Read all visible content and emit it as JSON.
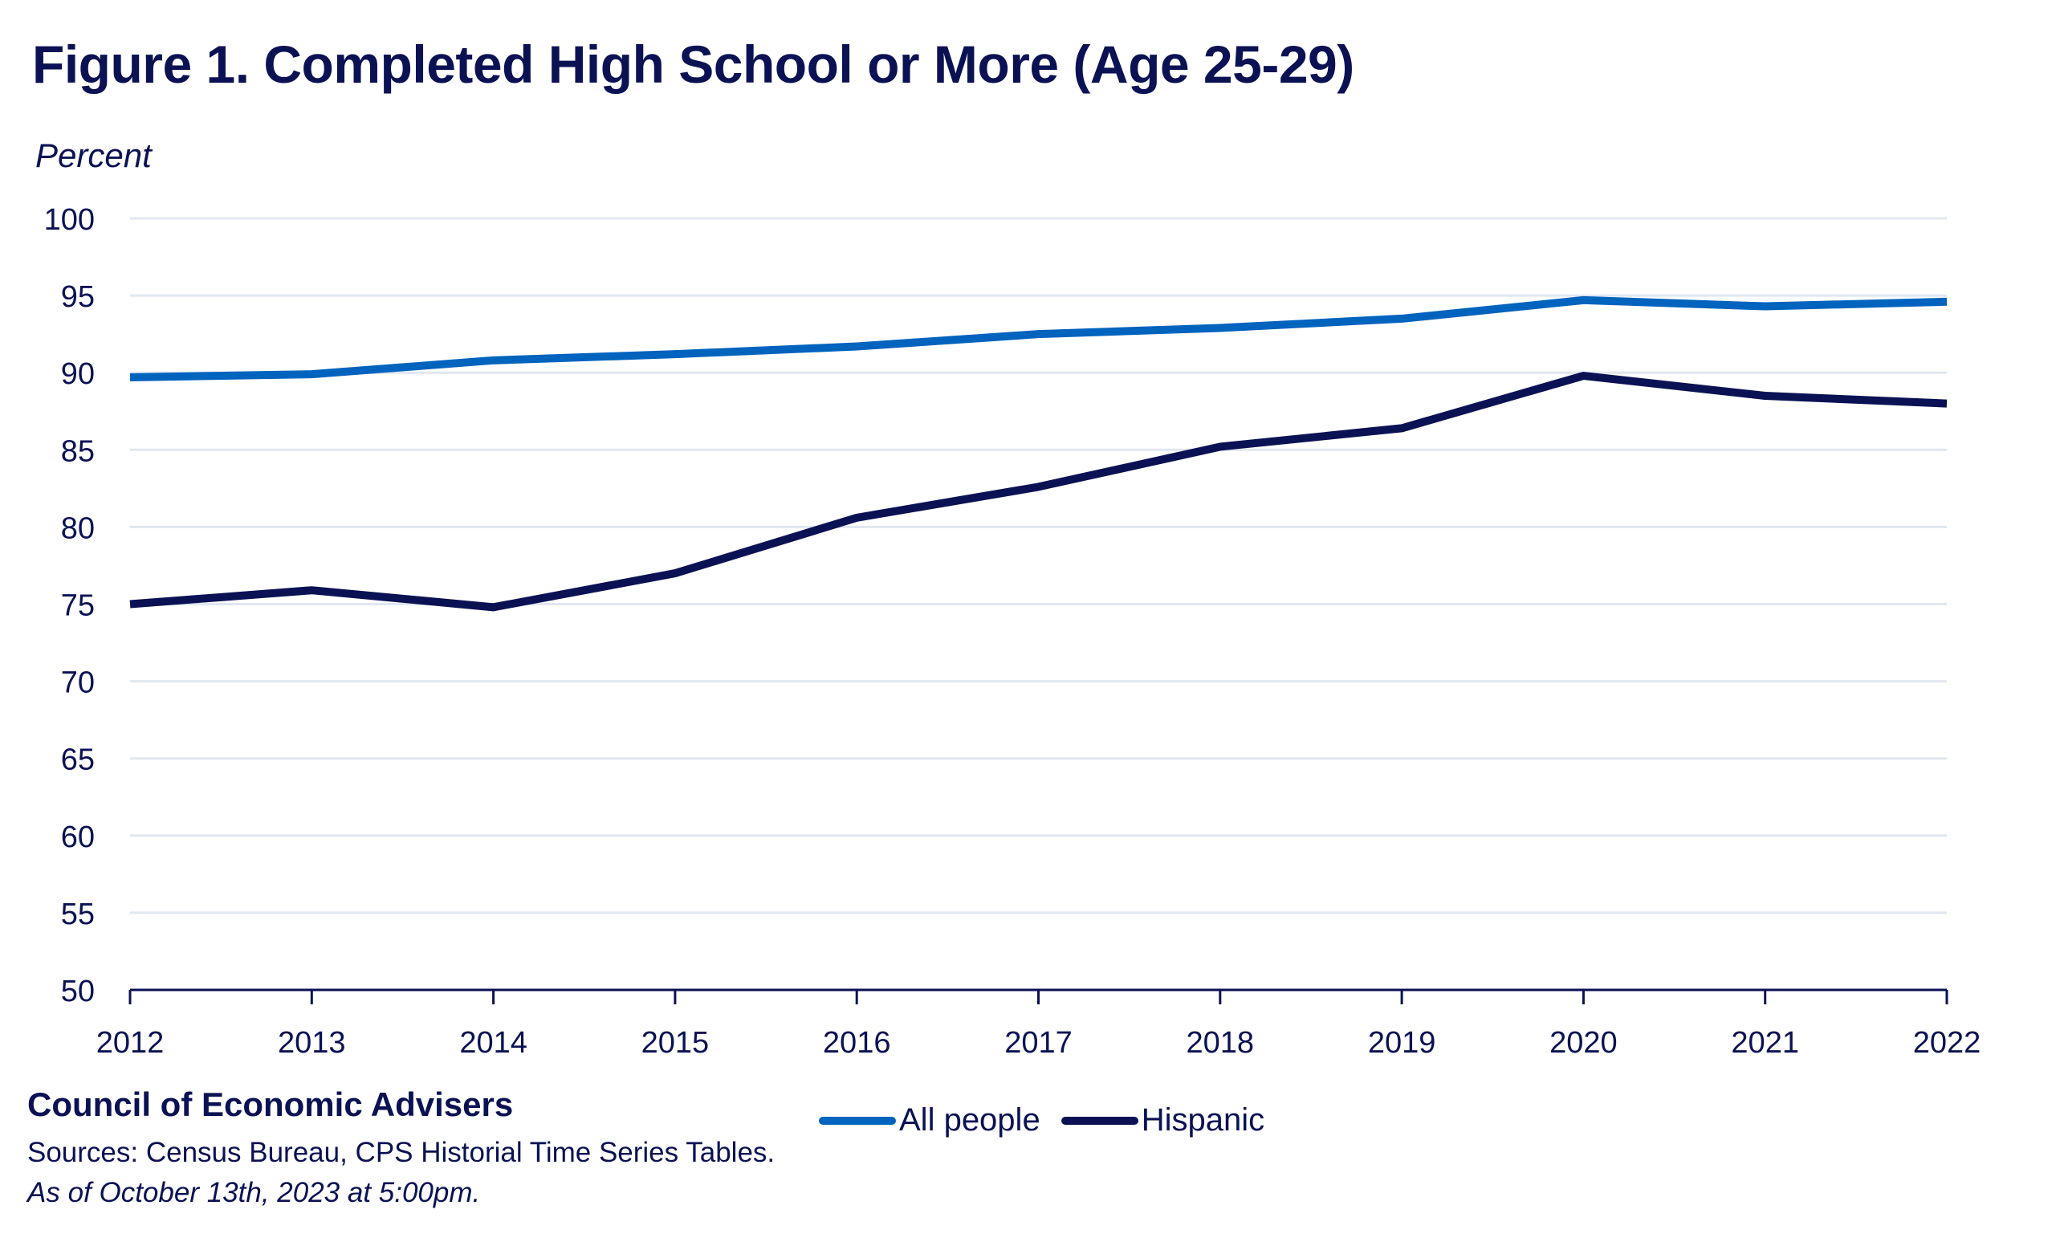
{
  "chart_data": {
    "type": "line",
    "title": "Figure 1. Completed High School or More (Age 25-29)",
    "xlabel": "",
    "ylabel": "Percent",
    "x": [
      "2012",
      "2013",
      "2014",
      "2015",
      "2016",
      "2017",
      "2018",
      "2019",
      "2020",
      "2021",
      "2022"
    ],
    "ylim": [
      50,
      100
    ],
    "yticks": [
      "50",
      "55",
      "60",
      "65",
      "70",
      "75",
      "80",
      "85",
      "90",
      "95",
      "100"
    ],
    "grid": true,
    "legend_position": "bottom-center",
    "series": [
      {
        "name": "All people",
        "color": "#0063be",
        "values": [
          89.7,
          89.9,
          90.8,
          91.2,
          91.7,
          92.5,
          92.9,
          93.5,
          94.7,
          94.3,
          94.6
        ]
      },
      {
        "name": "Hispanic",
        "color": "#0a1254",
        "values": [
          75.0,
          75.9,
          74.8,
          77.0,
          80.6,
          82.6,
          85.2,
          86.4,
          89.8,
          88.5,
          88.0
        ]
      }
    ]
  },
  "footer": {
    "organization": "Council of Economic Advisers",
    "sources": "Sources: Census Bureau, CPS Historial Time Series Tables.",
    "as_of": "As of October 13th, 2023 at 5:00pm."
  },
  "colors": {
    "text": "#0a1254",
    "gridline": "#e1e7f0",
    "all_people": "#0063be",
    "hispanic": "#0a1254"
  }
}
